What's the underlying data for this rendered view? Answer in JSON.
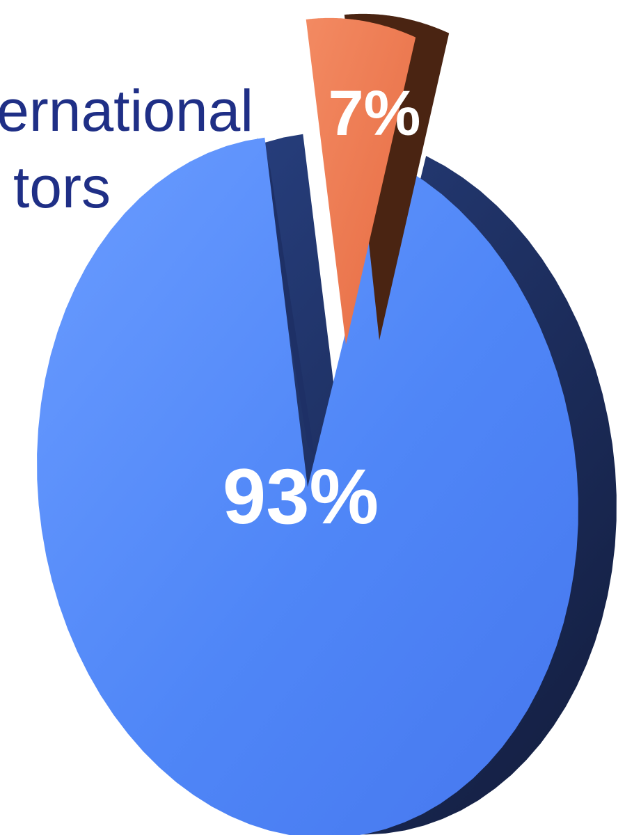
{
  "chart_data": {
    "type": "pie",
    "slices": [
      {
        "label": "93%",
        "value": 93,
        "color": "#4f86f7"
      },
      {
        "label": "7%",
        "value": 7,
        "color": "#ef7a52"
      }
    ],
    "visible_caption_lines": [
      "ernational",
      "tors"
    ],
    "exploded_slice": "7%"
  },
  "colors": {
    "caption_text": "#1f2f86",
    "major_face": "#4f86f7",
    "major_side": "#1e3066",
    "minor_face": "#ef7a52",
    "minor_side": "#4a2412",
    "background": "#ffffff"
  }
}
